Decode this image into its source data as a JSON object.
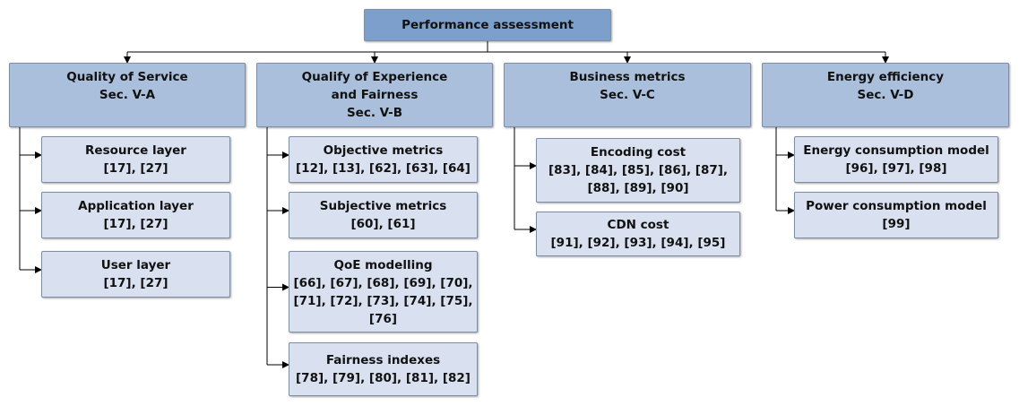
{
  "root": {
    "title": "Performance assessment"
  },
  "categories": [
    {
      "lines": [
        "Quality of Service",
        "Sec. V-A"
      ],
      "items": [
        {
          "title": "Resource layer",
          "refs": [
            "[17], [27]"
          ]
        },
        {
          "title": "Application layer",
          "refs": [
            "[17], [27]"
          ]
        },
        {
          "title": "User layer",
          "refs": [
            "[17], [27]"
          ]
        }
      ]
    },
    {
      "lines": [
        "Qualify of Experience",
        "and Fairness",
        "Sec. V-B"
      ],
      "items": [
        {
          "title": "Objective metrics",
          "refs": [
            "[12], [13], [62], [63], [64]"
          ]
        },
        {
          "title": "Subjective metrics",
          "refs": [
            "[60], [61]"
          ]
        },
        {
          "title": "QoE modelling",
          "refs": [
            "[66], [67], [68], [69], [70],",
            "[71], [72], [73], [74], [75],",
            "[76]"
          ]
        },
        {
          "title": "Fairness indexes",
          "refs": [
            "[78], [79], [80], [81], [82]"
          ]
        }
      ]
    },
    {
      "lines": [
        "Business metrics",
        "Sec. V-C"
      ],
      "items": [
        {
          "title": "Encoding cost",
          "refs": [
            "[83], [84], [85], [86], [87],",
            "[88], [89], [90]"
          ]
        },
        {
          "title": "CDN cost",
          "refs": [
            "[91], [92], [93], [94], [95]"
          ]
        }
      ]
    },
    {
      "lines": [
        "Energy efficiency",
        "Sec. V-D"
      ],
      "items": [
        {
          "title": "Energy consumption model",
          "refs": [
            "[96], [97], [98]"
          ]
        },
        {
          "title": "Power consumption model",
          "refs": [
            "[99]"
          ]
        }
      ]
    }
  ],
  "colors": {
    "root": "#7c9fcb",
    "category": "#a9bfdc",
    "leaf": "#d9e1f0",
    "connector": "#000000"
  }
}
